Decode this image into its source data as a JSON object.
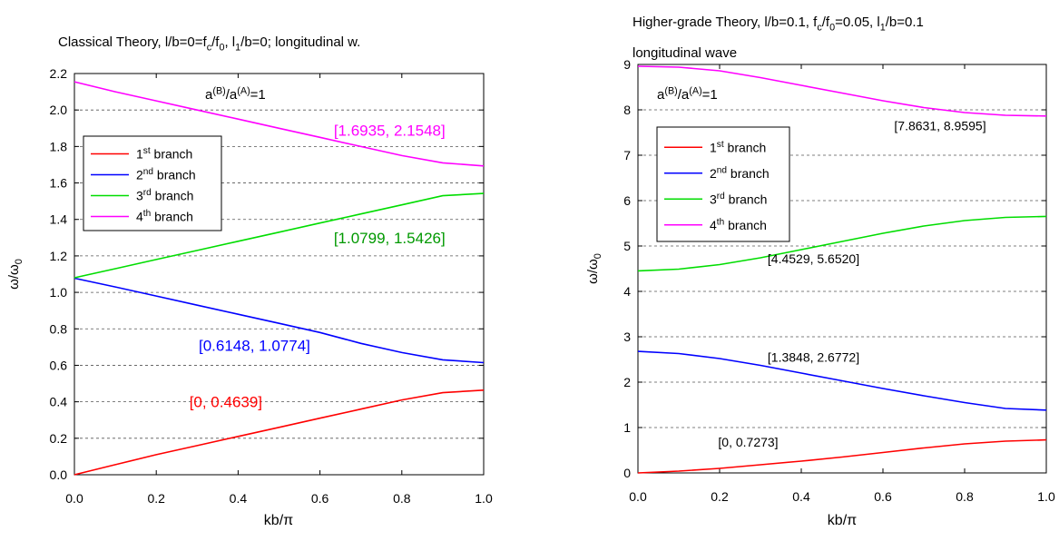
{
  "chart_data": [
    {
      "type": "line",
      "title": "Classical Theory,   l/b=0=f_c/f_0, l_1/b=0; longitudinal w.",
      "xlabel": "kb/π",
      "ylabel": "ω/ω0",
      "xlim": [
        0,
        1
      ],
      "ylim": [
        0,
        2.2
      ],
      "xticks": [
        "0.0",
        "0.2",
        "0.4",
        "0.6",
        "0.8",
        "1.0"
      ],
      "yticks": [
        "0.0",
        "0.2",
        "0.4",
        "0.6",
        "0.8",
        "1.0",
        "1.2",
        "1.4",
        "1.6",
        "1.8",
        "2.0",
        "2.2"
      ],
      "grid": "horizontal dashed",
      "ratio_text": "a(B)/a(A)=1",
      "legend_position": "upper-left",
      "series": [
        {
          "name": "1st branch",
          "color": "#ff0000",
          "x": [
            0,
            0.1,
            0.2,
            0.3,
            0.4,
            0.5,
            0.6,
            0.7,
            0.8,
            0.9,
            1.0
          ],
          "values": [
            0,
            0.055,
            0.11,
            0.16,
            0.21,
            0.26,
            0.31,
            0.36,
            0.41,
            0.45,
            0.4639
          ]
        },
        {
          "name": "2nd branch",
          "color": "#0000ff",
          "x": [
            0,
            0.1,
            0.2,
            0.3,
            0.4,
            0.5,
            0.6,
            0.7,
            0.8,
            0.9,
            1.0
          ],
          "values": [
            1.0774,
            1.03,
            0.98,
            0.93,
            0.88,
            0.83,
            0.78,
            0.72,
            0.67,
            0.63,
            0.6148
          ]
        },
        {
          "name": "3rd branch",
          "color": "#00dd00",
          "x": [
            0,
            0.1,
            0.2,
            0.3,
            0.4,
            0.5,
            0.6,
            0.7,
            0.8,
            0.9,
            1.0
          ],
          "values": [
            1.0799,
            1.13,
            1.18,
            1.23,
            1.28,
            1.33,
            1.38,
            1.43,
            1.48,
            1.53,
            1.5426
          ]
        },
        {
          "name": "4th branch",
          "color": "#ff00ff",
          "x": [
            0,
            0.1,
            0.2,
            0.3,
            0.4,
            0.5,
            0.6,
            0.7,
            0.8,
            0.9,
            1.0
          ],
          "values": [
            2.1548,
            2.1,
            2.05,
            2.0,
            1.95,
            1.9,
            1.85,
            1.8,
            1.75,
            1.71,
            1.6935
          ]
        }
      ],
      "annotations": [
        {
          "text": "[1.6935, 2.1548]",
          "color": "#ff00ff",
          "x": 0.77,
          "y": 1.86
        },
        {
          "text": "[1.0799, 1.5426]",
          "color": "#009900",
          "x": 0.77,
          "y": 1.27
        },
        {
          "text": "[0.6148, 1.0774]",
          "color": "#0000ff",
          "x": 0.44,
          "y": 0.68
        },
        {
          "text": "[0, 0.4639]",
          "color": "#ff0000",
          "x": 0.37,
          "y": 0.37
        }
      ]
    },
    {
      "type": "line",
      "title": "Higher-grade Theory,   l/b=0.1, f_c/f_0=0.05, l_1/b=0.1",
      "subtitle": "longitudinal wave",
      "xlabel": "kb/π",
      "ylabel": "ω/ω0",
      "xlim": [
        0,
        1
      ],
      "ylim": [
        0,
        9
      ],
      "xticks": [
        "0.0",
        "0.2",
        "0.4",
        "0.6",
        "0.8",
        "1.0"
      ],
      "yticks": [
        "0",
        "1",
        "2",
        "3",
        "4",
        "5",
        "6",
        "7",
        "8",
        "9"
      ],
      "grid": "horizontal dashed",
      "ratio_text": "a(B)/a(A)=1",
      "legend_position": "upper-left",
      "series": [
        {
          "name": "1st branch",
          "color": "#ff0000",
          "x": [
            0,
            0.1,
            0.2,
            0.3,
            0.4,
            0.5,
            0.6,
            0.7,
            0.8,
            0.9,
            1.0
          ],
          "values": [
            0,
            0.04,
            0.1,
            0.18,
            0.26,
            0.35,
            0.45,
            0.55,
            0.64,
            0.7,
            0.7273
          ]
        },
        {
          "name": "2nd branch",
          "color": "#0000ff",
          "x": [
            0,
            0.1,
            0.2,
            0.3,
            0.4,
            0.5,
            0.6,
            0.7,
            0.8,
            0.9,
            1.0
          ],
          "values": [
            2.6772,
            2.63,
            2.52,
            2.37,
            2.2,
            2.03,
            1.86,
            1.7,
            1.55,
            1.42,
            1.3848
          ]
        },
        {
          "name": "3rd branch",
          "color": "#00dd00",
          "x": [
            0,
            0.1,
            0.2,
            0.3,
            0.4,
            0.5,
            0.6,
            0.7,
            0.8,
            0.9,
            1.0
          ],
          "values": [
            4.4529,
            4.49,
            4.59,
            4.74,
            4.92,
            5.1,
            5.28,
            5.44,
            5.56,
            5.63,
            5.652
          ]
        },
        {
          "name": "4th branch",
          "color": "#ff00ff",
          "x": [
            0,
            0.1,
            0.2,
            0.3,
            0.4,
            0.5,
            0.6,
            0.7,
            0.8,
            0.9,
            1.0
          ],
          "values": [
            8.9595,
            8.94,
            8.86,
            8.71,
            8.54,
            8.37,
            8.2,
            8.05,
            7.94,
            7.88,
            7.8631
          ]
        }
      ],
      "annotations": [
        {
          "text": "[7.8631, 8.9595]",
          "color": "#000000",
          "x": 0.74,
          "y": 7.55
        },
        {
          "text": "[4.4529, 5.6520]",
          "color": "#000000",
          "x": 0.43,
          "y": 4.62
        },
        {
          "text": "[1.3848, 2.6772]",
          "color": "#000000",
          "x": 0.43,
          "y": 2.45
        },
        {
          "text": "[0, 0.7273]",
          "color": "#000000",
          "x": 0.27,
          "y": 0.58
        }
      ]
    }
  ]
}
